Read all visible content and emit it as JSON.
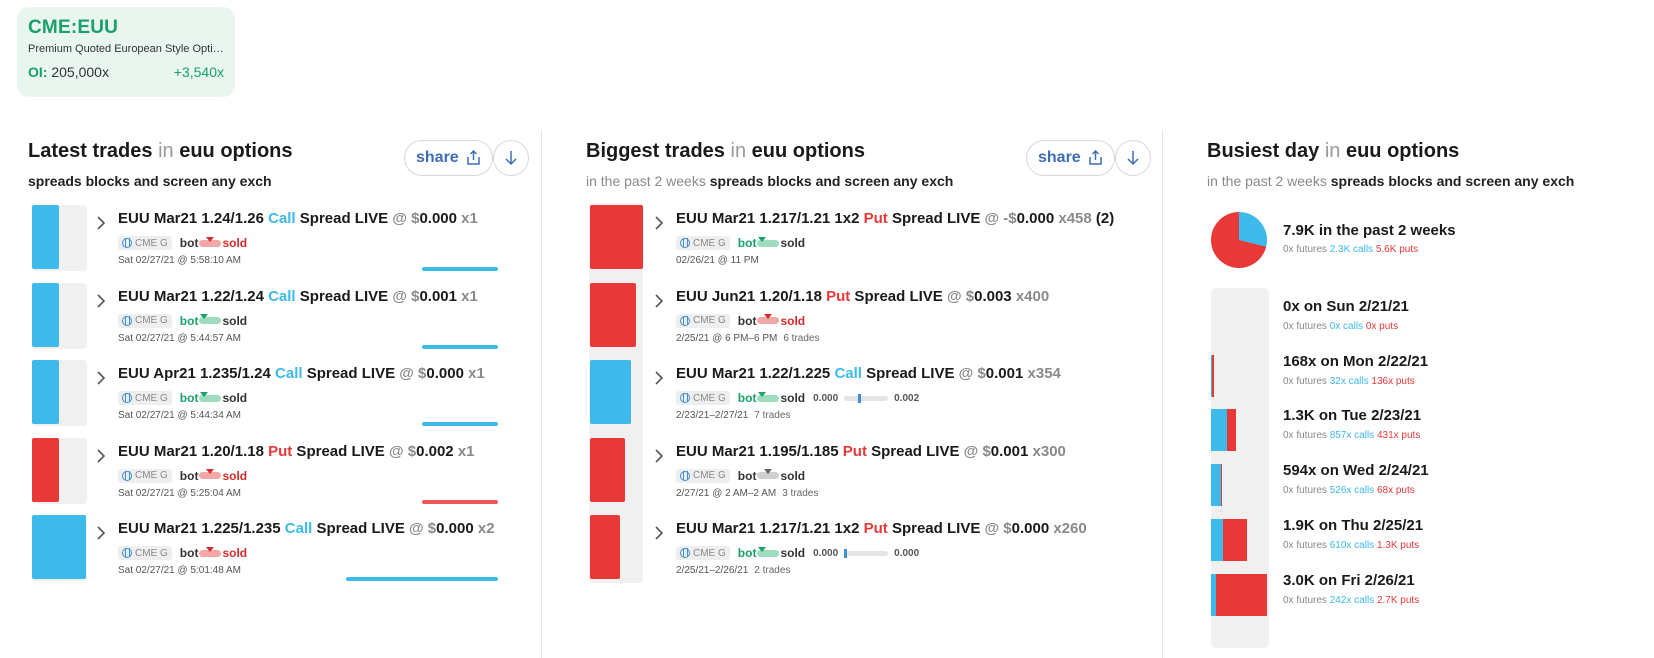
{
  "ticker": {
    "symbol": "CME:EUU",
    "description": "Premium Quoted European Style Options",
    "oi_label": "OI:",
    "oi_value": "205,000x",
    "oi_change": "+3,540x"
  },
  "latest": {
    "title": "Latest trades",
    "in": "in",
    "scope": "euu options",
    "subtitle": "spreads blocks and screen any exch",
    "share_label": "share",
    "trades": [
      {
        "product": "EUU Mar21 1.24/1.26",
        "right": "Call",
        "rest": "Spread LIVE",
        "at": "@ $",
        "price": "0.000",
        "qty": "x1",
        "exch": "CME G",
        "bot": "bot",
        "sold": "sold",
        "side": "sold",
        "time": "Sat 02/27/21 @ 5:58:10 AM",
        "color": "#3db9ea",
        "bar_fraction": 0.3,
        "track_fraction": 0.4
      },
      {
        "product": "EUU Mar21 1.22/1.24",
        "right": "Call",
        "rest": "Spread LIVE",
        "at": "@ $",
        "price": "0.001",
        "qty": "x1",
        "exch": "CME G",
        "bot": "bot",
        "sold": "sold",
        "side": "bot",
        "time": "Sat 02/27/21 @ 5:44:57 AM",
        "color": "#3db9ea",
        "bar_fraction": 0.3,
        "track_fraction": 0.4
      },
      {
        "product": "EUU Apr21 1.235/1.24",
        "right": "Call",
        "rest": "Spread LIVE",
        "at": "@ $",
        "price": "0.000",
        "qty": "x1",
        "exch": "CME G",
        "bot": "bot",
        "sold": "sold",
        "side": "bot",
        "time": "Sat 02/27/21 @ 5:44:34 AM",
        "color": "#3db9ea",
        "bar_fraction": 0.3,
        "track_fraction": 0.4
      },
      {
        "product": "EUU Mar21 1.20/1.18",
        "right": "Put",
        "rest": "Spread LIVE",
        "at": "@ $",
        "price": "0.002",
        "qty": "x1",
        "exch": "CME G",
        "bot": "bot",
        "sold": "sold",
        "side": "sold",
        "time": "Sat 02/27/21 @ 5:25:04 AM",
        "color": "#e83838",
        "bar_fraction": 0.3,
        "track_fraction": 0.4
      },
      {
        "product": "EUU Mar21 1.225/1.235",
        "right": "Call",
        "rest": "Spread LIVE",
        "at": "@ $",
        "price": "0.000",
        "qty": "x2",
        "exch": "CME G",
        "bot": "bot",
        "sold": "sold",
        "side": "sold",
        "time": "Sat 02/27/21 @ 5:01:48 AM",
        "color": "#3db9ea",
        "bar_fraction": 0.6,
        "track_fraction": 0.8
      }
    ]
  },
  "biggest": {
    "title": "Biggest trades",
    "in": "in",
    "scope": "euu options",
    "subtitle_lead": "in the past 2 weeks",
    "subtitle": "spreads blocks and screen any exch",
    "share_label": "share",
    "trades": [
      {
        "product": "EUU Mar21 1.217/1.21 1x2",
        "right": "Put",
        "rest": "Spread LIVE",
        "at": "@ -$",
        "price": "0.000",
        "qty": "x458",
        "extra": "(2)",
        "exch": "CME G",
        "bot": "bot",
        "sold": "sold",
        "side": "bot",
        "time": "02/26/21 @ 11 PM",
        "trade_count": "",
        "color": "#e83838",
        "track_fraction": 1.0,
        "range": null
      },
      {
        "product": "EUU Jun21 1.20/1.18",
        "right": "Put",
        "rest": "Spread LIVE",
        "at": "@ $",
        "price": "0.003",
        "qty": "x400",
        "extra": "",
        "exch": "CME G",
        "bot": "bot",
        "sold": "sold",
        "side": "sold",
        "time": "2/25/21 @ 6 PM–6 PM",
        "trade_count": "6 trades",
        "color": "#e83838",
        "track_fraction": 0.87,
        "range": null
      },
      {
        "product": "EUU Mar21 1.22/1.225",
        "right": "Call",
        "rest": "Spread LIVE",
        "at": "@ $",
        "price": "0.001",
        "qty": "x354",
        "extra": "",
        "exch": "CME G",
        "bot": "bot",
        "sold": "sold",
        "side": "bot",
        "time": "2/23/21–2/27/21",
        "trade_count": "7 trades",
        "color": "#3db9ea",
        "track_fraction": 0.77,
        "range": {
          "low": "0.000",
          "high": "0.002",
          "mark": 0.35
        }
      },
      {
        "product": "EUU Mar21 1.195/1.185",
        "right": "Put",
        "rest": "Spread LIVE",
        "at": "@ $",
        "price": "0.001",
        "qty": "x300",
        "extra": "",
        "exch": "CME G",
        "bot": "bot",
        "sold": "sold",
        "side": "mid",
        "time": "2/27/21 @ 2 AM–2 AM",
        "trade_count": "3 trades",
        "color": "#e83838",
        "track_fraction": 0.66,
        "range": null
      },
      {
        "product": "EUU Mar21 1.217/1.21 1x2",
        "right": "Put",
        "rest": "Spread LIVE",
        "at": "@ $",
        "price": "0.000",
        "qty": "x260",
        "extra": "",
        "exch": "CME G",
        "bot": "bot",
        "sold": "sold",
        "side": "bot",
        "time": "2/25/21–2/26/21",
        "trade_count": "2 trades",
        "color": "#e83838",
        "track_fraction": 0.57,
        "range": {
          "low": "0.000",
          "high": "0.000",
          "mark": 0.0
        }
      }
    ]
  },
  "busiest": {
    "title": "Busiest day",
    "in": "in",
    "scope": "euu options",
    "subtitle_lead": "in the past 2 weeks",
    "subtitle": "spreads blocks and screen any exch",
    "summary": {
      "title": "7.9K in the past 2 weeks",
      "futures": "0x futures",
      "calls": "2.3K calls",
      "puts": "5.6K puts",
      "calls_fraction": 0.29
    },
    "days": [
      {
        "title": "0x on Sun 2/21/21",
        "futures": "0x futures",
        "calls": "0x calls",
        "puts": "0x puts",
        "calls_value": 0,
        "puts_value": 0
      },
      {
        "title": "168x on Mon 2/22/21",
        "futures": "0x futures",
        "calls": "32x calls",
        "puts": "136x puts",
        "calls_value": 32,
        "puts_value": 136
      },
      {
        "title": "1.3K on Tue 2/23/21",
        "futures": "0x futures",
        "calls": "857x calls",
        "puts": "431x puts",
        "calls_value": 857,
        "puts_value": 431
      },
      {
        "title": "594x on Wed 2/24/21",
        "futures": "0x futures",
        "calls": "526x calls",
        "puts": "68x puts",
        "calls_value": 526,
        "puts_value": 68
      },
      {
        "title": "1.9K on Thu 2/25/21",
        "futures": "0x futures",
        "calls": "610x calls",
        "puts": "1.3K puts",
        "calls_value": 610,
        "puts_value": 1300
      },
      {
        "title": "3.0K on Fri 2/26/21",
        "futures": "0x futures",
        "calls": "242x calls",
        "puts": "2.7K puts",
        "calls_value": 242,
        "puts_value": 2700
      }
    ],
    "max_day_value": 2942
  },
  "colors": {
    "accent_green": "#1aa068",
    "call": "#3db9ea",
    "put": "#e83838",
    "link": "#3d6fb6"
  }
}
